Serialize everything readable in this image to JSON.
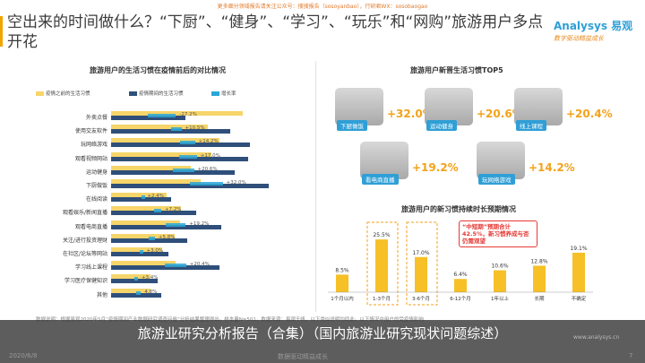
{
  "top_note": "更多细分领域报告请关注公众号：搜搜报告（sosoyanbao），行研君WX：sosobaogao",
  "title": "空出来的时间做什么？“下厨”、“健身”、“学习”、“玩乐”和“网购”旅游用户多点开花",
  "logo": {
    "brand": "Analysys 易观",
    "slogan": "数字驱动精益成长"
  },
  "left_chart_title": "旅游用户的生活习惯在疫情前后的对比情况",
  "right_top_title": "旅游用户新晋生活习惯TOP5",
  "right_bottom_title": "旅游用户的新习惯持续时长预期情况",
  "callout_text": "“中短期”预期合计42.5%，新习惯养成与否仍需观望",
  "habits_top5": [
    {
      "label": "下厨做饭",
      "pct": "+32.0%"
    },
    {
      "label": "运动健身",
      "pct": "+20.6%"
    },
    {
      "label": "线上课程",
      "pct": "+20.4%"
    },
    {
      "label": "看电商直播",
      "pct": "+19.2%"
    },
    {
      "label": "玩网络游戏",
      "pct": "+14.2%"
    }
  ],
  "source_note": "数据说明：根据易观2020年5月“疫情期间产业数据研究调查问卷”分析结果整理得出。样本量N=501，数据来源：易观千帆，以下类似说明均同此。以下情况中用户的受疫情影响",
  "caption": "旅游业研究分析报告（合集）（国内旅游业研究现状问题综述）",
  "date": "2020/6/8",
  "footer_center": "数据驱动精益成长",
  "footer_site": "www.analysys.cn",
  "page_no": "7",
  "chart_data": [
    {
      "type": "bar",
      "title": "旅游用户的生活习惯在疫情前后的对比情况",
      "orientation": "horizontal",
      "legend": "top",
      "categories": [
        "外卖点餐",
        "使用交友软件",
        "玩网络游戏",
        "观看视频网站",
        "运动健身",
        "下厨做饭",
        "在线阅读",
        "观看娱乐/新闻直播",
        "观看电商直播",
        "关注/进行投资理财",
        "在社区/论坛等网站",
        "学习线上课程",
        "学习医疗保健知识",
        "其他"
      ],
      "series": [
        {
          "name": "疫情之前的生活习惯",
          "values": [
            62.0,
            45.5,
            51.0,
            47.3,
            37.5,
            42.2,
            26.0,
            33.0,
            32.5,
            29.8,
            24.0,
            30.5,
            18.5,
            18.7
          ]
        },
        {
          "name": "疫情期间的生活习惯",
          "values": [
            34.8,
            56.0,
            65.2,
            64.3,
            58.1,
            74.2,
            28.4,
            40.2,
            51.7,
            35.6,
            27.0,
            50.9,
            21.9,
            23.5
          ]
        },
        {
          "name": "增长率",
          "values": [
            -27.2,
            10.5,
            14.2,
            17.0,
            20.6,
            32.0,
            2.4,
            7.2,
            19.2,
            5.8,
            3.0,
            20.4,
            3.4,
            4.8
          ]
        }
      ],
      "data_labels": [
        "-27.2%",
        "+10.5%",
        "+14.2%",
        "+17.0%",
        "+20.6%",
        "+32.0%",
        "+2.4%",
        "+7.2%",
        "+19.2%",
        "+5.8%",
        "+3.0%",
        "+20.4%",
        "+3.4%",
        "4.8%"
      ]
    },
    {
      "type": "bar",
      "title": "旅游用户的新习惯持续时长预期情况",
      "categories": [
        "1个月以内",
        "1-3个月",
        "3-6个月",
        "6-12个月",
        "1年以上",
        "长期",
        "不确定"
      ],
      "values": [
        8.5,
        25.5,
        17.0,
        6.4,
        10.6,
        12.8,
        19.1
      ],
      "labels": [
        "8.5%",
        "25.5%",
        "17.0%",
        "6.4%",
        "10.6%",
        "12.8%",
        "19.1%"
      ],
      "highlight": [
        "1-3个月",
        "3-6个月"
      ],
      "colors": {
        "normal": "#f6c026",
        "highlight": "#f6c026"
      }
    }
  ],
  "colors": {
    "before": "#f6d56a",
    "during": "#2f4f7a",
    "growth": "#2aa7d8",
    "accent": "#f3a21b",
    "brand": "#2f9fd6"
  }
}
